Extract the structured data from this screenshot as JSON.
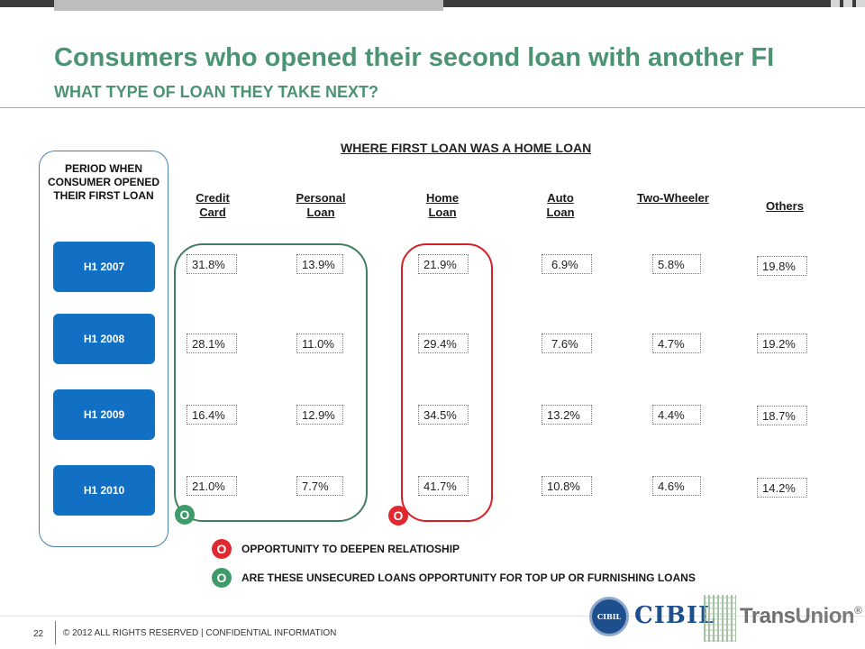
{
  "slide": {
    "title": "Consumers who opened their second loan with another FI",
    "subtitle": "WHAT TYPE OF LOAN THEY TAKE NEXT?",
    "section_heading": "WHERE FIRST LOAN WAS A HOME LOAN"
  },
  "period": {
    "label": "PERIOD WHEN CONSUMER OPENED THEIR FIRST LOAN",
    "items": [
      "H1 2007",
      "H1 2008",
      "H1 2009",
      "H1 2010"
    ]
  },
  "columns": [
    {
      "name": "Credit Card",
      "values": [
        "31.8%",
        "28.1%",
        "16.4%",
        "21.0%"
      ]
    },
    {
      "name": "Personal Loan",
      "values": [
        "13.9%",
        "11.0%",
        "12.9%",
        "7.7%"
      ]
    },
    {
      "name": "Home Loan",
      "values": [
        "21.9%",
        "29.4%",
        "34.5%",
        "41.7%"
      ]
    },
    {
      "name": "Auto Loan",
      "values": [
        "6.9%",
        "7.6%",
        "13.2%",
        "10.8%"
      ]
    },
    {
      "name": "Two-Wheeler",
      "values": [
        "5.8%",
        "4.7%",
        "4.4%",
        "4.6%"
      ]
    },
    {
      "name": "Others",
      "values": [
        "19.8%",
        "19.2%",
        "18.7%",
        "14.2%"
      ]
    }
  ],
  "markers": {
    "letter": "O",
    "green_color": "#3f9a6a",
    "red_color": "#e0282e"
  },
  "legend": [
    {
      "marker": "O",
      "color": "red",
      "text": "OPPORTUNITY TO DEEPEN RELATIOSHIP"
    },
    {
      "marker": "O",
      "color": "green",
      "text": "ARE THESE UNSECURED LOANS OPPORTUNITY FOR TOP UP OR FURNISHING LOANS"
    }
  ],
  "footer": {
    "page_number": "22",
    "text": "© 2012 ALL RIGHTS RESERVED | CONFIDENTIAL INFORMATION"
  },
  "logos": {
    "seal": "CIBIL",
    "cibil": "CIBIL",
    "transunion_a": "Trans",
    "transunion_b": "Union",
    "transunion_mark": "®"
  },
  "colors": {
    "title_green": "#4b9373",
    "period_blue": "#1170c4",
    "oval_green": "#3f7f5f",
    "oval_red": "#d61f26"
  }
}
